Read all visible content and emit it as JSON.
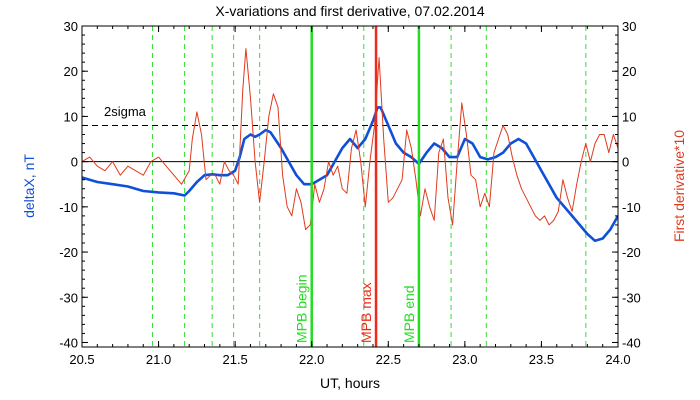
{
  "chart_data": {
    "type": "line",
    "title": "X-variations and first derivative, 07.02.2014",
    "xlabel": "UT, hours",
    "ylabel_left": "deltaX, nT",
    "ylabel_right": "First derivative*10",
    "xlim": [
      20.5,
      24.0
    ],
    "ylim": [
      -41,
      30
    ],
    "xticks": [
      "20.5",
      "21.0",
      "21.5",
      "22.0",
      "22.5",
      "23.0",
      "23.5",
      "24.0"
    ],
    "xtick_values": [
      20.5,
      21.0,
      21.5,
      22.0,
      22.5,
      23.0,
      23.5,
      24.0
    ],
    "yticks": [
      "30",
      "20",
      "10",
      "0",
      "-10",
      "-20",
      "-30",
      "-40"
    ],
    "ytick_values": [
      30,
      20,
      10,
      0,
      -10,
      -20,
      -30,
      -40
    ],
    "grid": false,
    "colors": {
      "deltaX": "#1050d8",
      "derivative": "#e03a1e",
      "mpb_edges": "#22dd22",
      "mpb_max": "#ee2a1a",
      "dashed_events": "#33dd33",
      "axes": "#000000"
    },
    "sigma_level": 8,
    "sigma_label": "2sigma",
    "event_lines": [
      20.96,
      21.17,
      21.35,
      21.49,
      21.66,
      22.34,
      22.91,
      23.14,
      23.79
    ],
    "markers": [
      {
        "label": "MPB begin",
        "x": 22.0,
        "kind": "edge"
      },
      {
        "label": "MPB max",
        "x": 22.42,
        "kind": "max"
      },
      {
        "label": "MPB end",
        "x": 22.7,
        "kind": "edge"
      }
    ],
    "series": [
      {
        "key": "deltaX",
        "x": [
          20.5,
          20.6,
          20.7,
          20.8,
          20.9,
          21.0,
          21.1,
          21.17,
          21.2,
          21.25,
          21.3,
          21.35,
          21.4,
          21.45,
          21.5,
          21.53,
          21.56,
          21.6,
          21.63,
          21.66,
          21.7,
          21.73,
          21.76,
          21.8,
          21.85,
          21.9,
          21.95,
          22.0,
          22.05,
          22.1,
          22.15,
          22.2,
          22.25,
          22.3,
          22.35,
          22.4,
          22.43,
          22.45,
          22.5,
          22.55,
          22.6,
          22.65,
          22.7,
          22.75,
          22.8,
          22.85,
          22.9,
          22.95,
          23.0,
          23.05,
          23.1,
          23.15,
          23.2,
          23.25,
          23.3,
          23.35,
          23.4,
          23.5,
          23.6,
          23.7,
          23.75,
          23.8,
          23.85,
          23.9,
          23.95,
          24.0
        ],
        "y": [
          -3.5,
          -4.5,
          -5,
          -5.5,
          -6.5,
          -6.8,
          -7,
          -7.5,
          -6.5,
          -4.5,
          -3,
          -2.8,
          -3,
          -3,
          -2,
          1,
          5,
          6,
          5.5,
          6,
          7,
          6.5,
          5,
          3,
          0,
          -3,
          -5,
          -5,
          -4,
          -3,
          0,
          3,
          5,
          3,
          5,
          9,
          12,
          12,
          8,
          4,
          2,
          1,
          -0.5,
          2,
          4,
          3,
          1,
          1,
          5,
          4,
          1,
          0.5,
          1,
          2,
          4,
          5,
          4,
          -2,
          -8,
          -12,
          -14,
          -16,
          -17.5,
          -17,
          -15,
          -12
        ]
      },
      {
        "key": "derivative",
        "x": [
          20.5,
          20.55,
          20.6,
          20.65,
          20.7,
          20.75,
          20.8,
          20.85,
          20.9,
          20.95,
          21.0,
          21.05,
          21.1,
          21.15,
          21.2,
          21.22,
          21.25,
          21.28,
          21.31,
          21.34,
          21.37,
          21.4,
          21.43,
          21.46,
          21.49,
          21.52,
          21.55,
          21.57,
          21.6,
          21.63,
          21.66,
          21.69,
          21.72,
          21.75,
          21.78,
          21.81,
          21.84,
          21.87,
          21.9,
          21.93,
          21.96,
          21.99,
          22.02,
          22.05,
          22.08,
          22.11,
          22.14,
          22.17,
          22.2,
          22.23,
          22.26,
          22.29,
          22.32,
          22.35,
          22.38,
          22.41,
          22.44,
          22.47,
          22.5,
          22.53,
          22.56,
          22.59,
          22.62,
          22.65,
          22.68,
          22.71,
          22.74,
          22.77,
          22.8,
          22.83,
          22.86,
          22.89,
          22.92,
          22.95,
          22.98,
          23.01,
          23.04,
          23.07,
          23.1,
          23.13,
          23.16,
          23.19,
          23.22,
          23.25,
          23.28,
          23.31,
          23.34,
          23.37,
          23.4,
          23.43,
          23.46,
          23.49,
          23.52,
          23.55,
          23.58,
          23.61,
          23.64,
          23.67,
          23.7,
          23.73,
          23.76,
          23.79,
          23.82,
          23.85,
          23.88,
          23.91,
          23.94,
          23.97,
          24.0
        ],
        "y": [
          0,
          1,
          -1,
          -2,
          0,
          -3,
          -1,
          -2,
          -3,
          0,
          1,
          -1,
          -3,
          -5,
          -2,
          5,
          11,
          6,
          -4,
          -3,
          -3,
          -5,
          0,
          -2,
          -3,
          -5,
          16,
          25,
          14,
          0,
          -9,
          0,
          10,
          15,
          12,
          -3,
          -10,
          -12,
          -6,
          -9,
          -15,
          -14,
          -5,
          -9,
          -6,
          0,
          -3,
          -1,
          -6,
          -7,
          3,
          7,
          0,
          -10,
          0,
          8,
          23,
          5,
          -9,
          -8,
          -6,
          -4,
          7,
          3,
          -4,
          -12,
          -6,
          -10,
          -13,
          2,
          5,
          -8,
          -14,
          0,
          13,
          6,
          -3,
          -4,
          -10,
          -7,
          -10,
          2,
          5,
          8,
          6,
          1,
          -3,
          -6,
          -8,
          -10,
          -12,
          -13,
          -12,
          -14,
          -13,
          -11,
          -4,
          -8,
          -11,
          -5,
          0,
          4,
          0,
          4,
          6,
          6,
          2,
          6,
          3
        ]
      }
    ]
  }
}
